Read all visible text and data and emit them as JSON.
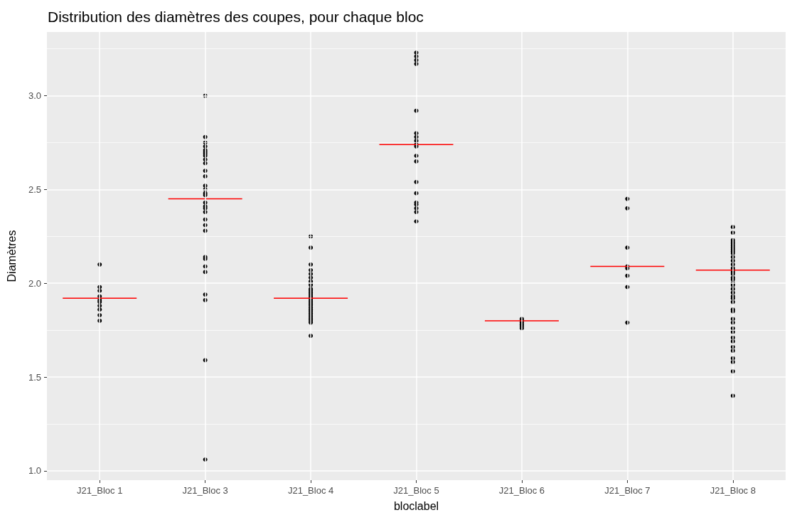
{
  "chart_data": {
    "type": "scatter",
    "title": "Distribution des diamètres des coupes, pour chaque bloc",
    "xlabel": "bloclabel",
    "ylabel": "Diamètres",
    "categories": [
      "J21_Bloc 1",
      "J21_Bloc 3",
      "J21_Bloc 4",
      "J21_Bloc 5",
      "J21_Bloc 6",
      "J21_Bloc 7",
      "J21_Bloc 8"
    ],
    "ylim": [
      0.95,
      3.34
    ],
    "yticks": [
      {
        "value": 1,
        "label": "1.0"
      },
      {
        "value": 1.25,
        "label": null
      },
      {
        "value": 1.5,
        "label": "1.5"
      },
      {
        "value": 1.75,
        "label": null
      },
      {
        "value": 2,
        "label": "2.0"
      },
      {
        "value": 2.25,
        "label": null
      },
      {
        "value": 2.5,
        "label": "2.5"
      },
      {
        "value": 2.75,
        "label": null
      },
      {
        "value": 3,
        "label": "3.0"
      },
      {
        "value": 3.25,
        "label": null
      }
    ],
    "grid": true,
    "marker": "circle",
    "series": [
      {
        "color": "#000000",
        "x": [
          "J21_Bloc 1",
          "J21_Bloc 1",
          "J21_Bloc 1",
          "J21_Bloc 1",
          "J21_Bloc 1",
          "J21_Bloc 1",
          "J21_Bloc 1",
          "J21_Bloc 1",
          "J21_Bloc 1",
          "J21_Bloc 1",
          "J21_Bloc 3",
          "J21_Bloc 3",
          "J21_Bloc 3",
          "J21_Bloc 3",
          "J21_Bloc 3",
          "J21_Bloc 3",
          "J21_Bloc 3",
          "J21_Bloc 3",
          "J21_Bloc 3",
          "J21_Bloc 3",
          "J21_Bloc 3",
          "J21_Bloc 3",
          "J21_Bloc 3",
          "J21_Bloc 3",
          "J21_Bloc 3",
          "J21_Bloc 3",
          "J21_Bloc 3",
          "J21_Bloc 3",
          "J21_Bloc 3",
          "J21_Bloc 3",
          "J21_Bloc 3",
          "J21_Bloc 3",
          "J21_Bloc 3",
          "J21_Bloc 3",
          "J21_Bloc 3",
          "J21_Bloc 3",
          "J21_Bloc 3",
          "J21_Bloc 3",
          "J21_Bloc 3",
          "J21_Bloc 3",
          "J21_Bloc 3",
          "J21_Bloc 4",
          "J21_Bloc 4",
          "J21_Bloc 4",
          "J21_Bloc 4",
          "J21_Bloc 4",
          "J21_Bloc 4",
          "J21_Bloc 4",
          "J21_Bloc 4",
          "J21_Bloc 4",
          "J21_Bloc 4",
          "J21_Bloc 4",
          "J21_Bloc 4",
          "J21_Bloc 4",
          "J21_Bloc 4",
          "J21_Bloc 4",
          "J21_Bloc 4",
          "J21_Bloc 4",
          "J21_Bloc 4",
          "J21_Bloc 4",
          "J21_Bloc 4",
          "J21_Bloc 4",
          "J21_Bloc 4",
          "J21_Bloc 4",
          "J21_Bloc 4",
          "J21_Bloc 4",
          "J21_Bloc 4",
          "J21_Bloc 4",
          "J21_Bloc 4",
          "J21_Bloc 4",
          "J21_Bloc 5",
          "J21_Bloc 5",
          "J21_Bloc 5",
          "J21_Bloc 5",
          "J21_Bloc 5",
          "J21_Bloc 5",
          "J21_Bloc 5",
          "J21_Bloc 5",
          "J21_Bloc 5",
          "J21_Bloc 5",
          "J21_Bloc 5",
          "J21_Bloc 5",
          "J21_Bloc 5",
          "J21_Bloc 5",
          "J21_Bloc 5",
          "J21_Bloc 5",
          "J21_Bloc 5",
          "J21_Bloc 5",
          "J21_Bloc 5",
          "J21_Bloc 6",
          "J21_Bloc 6",
          "J21_Bloc 6",
          "J21_Bloc 6",
          "J21_Bloc 6",
          "J21_Bloc 6",
          "J21_Bloc 7",
          "J21_Bloc 7",
          "J21_Bloc 7",
          "J21_Bloc 7",
          "J21_Bloc 7",
          "J21_Bloc 7",
          "J21_Bloc 7",
          "J21_Bloc 7",
          "J21_Bloc 8",
          "J21_Bloc 8",
          "J21_Bloc 8",
          "J21_Bloc 8",
          "J21_Bloc 8",
          "J21_Bloc 8",
          "J21_Bloc 8",
          "J21_Bloc 8",
          "J21_Bloc 8",
          "J21_Bloc 8",
          "J21_Bloc 8",
          "J21_Bloc 8",
          "J21_Bloc 8",
          "J21_Bloc 8",
          "J21_Bloc 8",
          "J21_Bloc 8",
          "J21_Bloc 8",
          "J21_Bloc 8",
          "J21_Bloc 8",
          "J21_Bloc 8",
          "J21_Bloc 8",
          "J21_Bloc 8",
          "J21_Bloc 8",
          "J21_Bloc 8",
          "J21_Bloc 8",
          "J21_Bloc 8",
          "J21_Bloc 8",
          "J21_Bloc 8",
          "J21_Bloc 8",
          "J21_Bloc 8",
          "J21_Bloc 8",
          "J21_Bloc 8",
          "J21_Bloc 8",
          "J21_Bloc 8",
          "J21_Bloc 8",
          "J21_Bloc 8",
          "J21_Bloc 8",
          "J21_Bloc 8",
          "J21_Bloc 8",
          "J21_Bloc 8"
        ],
        "values": [
          2.1,
          1.98,
          1.96,
          1.93,
          1.91,
          1.9,
          1.88,
          1.86,
          1.83,
          1.8,
          3.0,
          2.78,
          2.75,
          2.73,
          2.71,
          2.7,
          2.69,
          2.68,
          2.66,
          2.64,
          2.6,
          2.57,
          2.52,
          2.5,
          2.48,
          2.47,
          2.43,
          2.41,
          2.4,
          2.38,
          2.34,
          2.31,
          2.28,
          2.14,
          2.13,
          2.09,
          2.06,
          1.94,
          1.91,
          1.59,
          1.06,
          2.25,
          2.19,
          2.1,
          2.07,
          2.05,
          2.03,
          2.01,
          2.0,
          1.99,
          1.97,
          1.96,
          1.95,
          1.94,
          1.93,
          1.92,
          1.91,
          1.9,
          1.89,
          1.88,
          1.87,
          1.86,
          1.85,
          1.84,
          1.83,
          1.82,
          1.81,
          1.8,
          1.79,
          1.72,
          3.23,
          3.21,
          3.19,
          3.17,
          2.92,
          2.8,
          2.78,
          2.76,
          2.74,
          2.73,
          2.68,
          2.65,
          2.54,
          2.48,
          2.43,
          2.42,
          2.4,
          2.38,
          2.33,
          1.81,
          1.8,
          1.79,
          1.78,
          1.77,
          1.76,
          2.45,
          2.4,
          2.19,
          2.09,
          2.08,
          2.04,
          1.98,
          1.79,
          2.3,
          2.27,
          2.23,
          2.22,
          2.21,
          2.2,
          2.19,
          2.18,
          2.17,
          2.16,
          2.14,
          2.12,
          2.1,
          2.08,
          2.07,
          2.06,
          2.05,
          2.03,
          2.02,
          2.0,
          1.99,
          1.97,
          1.95,
          1.93,
          1.92,
          1.9,
          1.86,
          1.85,
          1.81,
          1.79,
          1.76,
          1.74,
          1.71,
          1.69,
          1.66,
          1.64,
          1.6,
          1.58,
          1.53,
          1.4
        ]
      },
      {
        "type": "box",
        "color": "#ff0000",
        "boxes": [
          {
            "low": 1.92,
            "q1": 1.92,
            "median": 1.92,
            "q3": 1.92,
            "high": 1.92
          },
          {
            "low": 2.45,
            "q1": 2.45,
            "median": 2.45,
            "q3": 2.45,
            "high": 2.45
          },
          {
            "low": 1.92,
            "q1": 1.92,
            "median": 1.92,
            "q3": 1.92,
            "high": 1.92
          },
          {
            "low": 2.74,
            "q1": 2.74,
            "median": 2.74,
            "q3": 2.74,
            "high": 2.74
          },
          {
            "low": 1.8,
            "q1": 1.8,
            "median": 1.8,
            "q3": 1.8,
            "high": 1.8
          },
          {
            "low": 2.09,
            "q1": 2.09,
            "median": 2.09,
            "q3": 2.09,
            "high": 2.09
          },
          {
            "low": 2.07,
            "q1": 2.07,
            "median": 2.07,
            "q3": 2.07,
            "high": 2.07
          }
        ]
      }
    ]
  }
}
